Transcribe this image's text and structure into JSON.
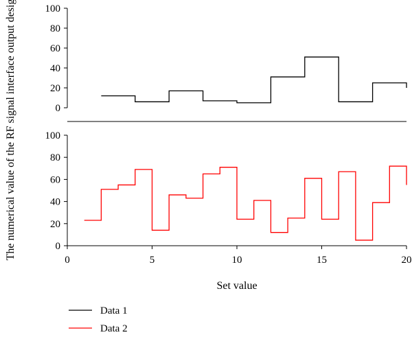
{
  "chart_data": {
    "type": "line",
    "step": true,
    "xlabel": "Set value",
    "ylabel": "The numerical value of the RF signal interface output design",
    "xlim": [
      0,
      20
    ],
    "xticks": [
      0,
      5,
      10,
      15,
      20
    ],
    "panels": [
      {
        "name": "top",
        "ylim": [
          0,
          100
        ],
        "yticks": [
          0,
          20,
          40,
          60,
          80,
          100
        ],
        "series_index": 0
      },
      {
        "name": "bottom",
        "ylim": [
          0,
          100
        ],
        "yticks": [
          0,
          20,
          40,
          60,
          80,
          100
        ],
        "series_index": 1
      }
    ],
    "series": [
      {
        "name": "Data 1",
        "color": "#000000",
        "x": [
          2,
          4,
          6,
          8,
          10,
          12,
          14,
          16,
          18,
          20
        ],
        "y": [
          12,
          6,
          17,
          7,
          5,
          31,
          51,
          6,
          25,
          20
        ]
      },
      {
        "name": "Data 2",
        "color": "#ff0000",
        "x": [
          1,
          2,
          3,
          4,
          5,
          6,
          7,
          8,
          9,
          10,
          11,
          12,
          13,
          14,
          15,
          16,
          17,
          18,
          19,
          20
        ],
        "y": [
          23,
          51,
          55,
          69,
          14,
          46,
          43,
          65,
          71,
          24,
          41,
          12,
          25,
          61,
          24,
          67,
          5,
          39,
          72,
          55
        ]
      }
    ],
    "legend": {
      "position": "bottom-left",
      "entries": [
        "Data 1",
        "Data 2"
      ]
    },
    "grid": false
  }
}
